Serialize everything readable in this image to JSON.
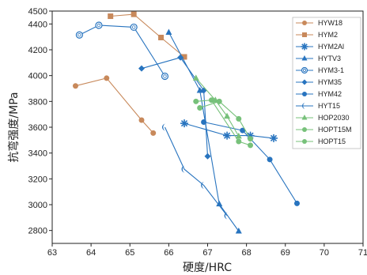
{
  "chart_data": {
    "type": "scatter",
    "xlabel": "硬度/HRC",
    "ylabel": "抗弯强度/MPa",
    "xlim": [
      63,
      71
    ],
    "ylim": [
      2700,
      4500
    ],
    "xticks": [
      63,
      64,
      65,
      66,
      67,
      68,
      69,
      70,
      71
    ],
    "yticks": [
      2800,
      3000,
      3200,
      3400,
      3600,
      3800,
      4000,
      4200,
      4400,
      4500
    ],
    "grid": false,
    "legend_position": "top-right",
    "series": [
      {
        "name": "HYW18",
        "color": "#c8895b",
        "marker": "circle",
        "points": [
          [
            63.6,
            3920
          ],
          [
            64.4,
            3980
          ],
          [
            65.3,
            3655
          ],
          [
            65.6,
            3555
          ]
        ]
      },
      {
        "name": "HYM2",
        "color": "#c8895b",
        "marker": "square",
        "points": [
          [
            64.5,
            4460
          ],
          [
            65.1,
            4475
          ],
          [
            65.8,
            4295
          ],
          [
            66.4,
            4145
          ]
        ]
      },
      {
        "name": "HYM2Al",
        "color": "#2874bf",
        "marker": "asterisk",
        "points": [
          [
            66.4,
            3630
          ],
          [
            67.5,
            3535
          ],
          [
            68.1,
            3535
          ],
          [
            68.7,
            3515
          ]
        ]
      },
      {
        "name": "HYTV3",
        "color": "#2874bf",
        "marker": "triangle",
        "points": [
          [
            66.0,
            4335
          ],
          [
            66.8,
            3885
          ],
          [
            67.3,
            3005
          ],
          [
            67.8,
            2795
          ]
        ]
      },
      {
        "name": "HYM3-1",
        "color": "#2874bf",
        "marker": "circle-hollow",
        "points": [
          [
            63.7,
            4315
          ],
          [
            64.2,
            4390
          ],
          [
            65.1,
            4375
          ],
          [
            65.9,
            3995
          ]
        ]
      },
      {
        "name": "HYM35",
        "color": "#2874bf",
        "marker": "diamond",
        "points": [
          [
            65.3,
            4055
          ],
          [
            66.3,
            4140
          ],
          [
            66.9,
            3885
          ],
          [
            67.0,
            3375
          ]
        ]
      },
      {
        "name": "HYM42",
        "color": "#2874bf",
        "marker": "circle",
        "points": [
          [
            66.9,
            3640
          ],
          [
            67.9,
            3575
          ],
          [
            68.6,
            3350
          ],
          [
            69.3,
            3010
          ]
        ]
      },
      {
        "name": "HYT15",
        "color": "#2874bf",
        "marker": "crescent",
        "points": [
          [
            65.9,
            3600
          ],
          [
            66.4,
            3275
          ],
          [
            66.9,
            3150
          ],
          [
            67.5,
            2915
          ]
        ]
      },
      {
        "name": "HOP2030",
        "color": "#77c17a",
        "marker": "triangle",
        "points": [
          [
            66.7,
            3980
          ],
          [
            67.2,
            3810
          ],
          [
            67.5,
            3685
          ],
          [
            67.8,
            3530
          ]
        ]
      },
      {
        "name": "HOPT15M",
        "color": "#77c17a",
        "marker": "circle",
        "points": [
          [
            66.8,
            3750
          ],
          [
            67.3,
            3800
          ],
          [
            67.8,
            3665
          ],
          [
            68.1,
            3510
          ]
        ]
      },
      {
        "name": "HOPT15",
        "color": "#77c17a",
        "marker": "circle",
        "points": [
          [
            66.7,
            3800
          ],
          [
            67.1,
            3810
          ],
          [
            67.8,
            3490
          ],
          [
            68.1,
            3460
          ]
        ]
      }
    ]
  }
}
